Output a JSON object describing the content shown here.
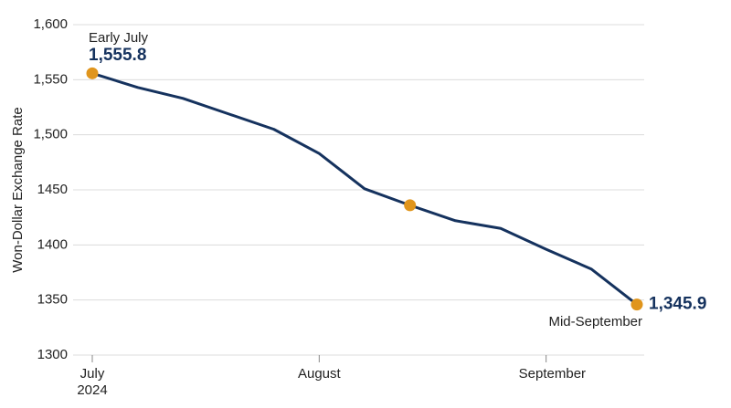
{
  "chart_data": {
    "type": "line",
    "y_label": "Won-Dollar Exchange Rate",
    "categories": [
      "July 2024",
      null,
      null,
      null,
      null,
      "August",
      null,
      null,
      null,
      null,
      "September",
      null,
      null
    ],
    "series": [
      {
        "name": "Won-Dollar Exchange Rate",
        "color": "#15325e",
        "values": [
          1555.8,
          1543,
          1533,
          1519,
          1505,
          1483,
          1451,
          1436,
          1422,
          1415,
          1396,
          1378,
          1345.9
        ],
        "value_labels": [
          "1,555.8",
          null,
          null,
          null,
          null,
          null,
          null,
          null,
          null,
          null,
          null,
          null,
          "1,345.9"
        ]
      }
    ],
    "annotations": [
      "Early July",
      "Mid-September"
    ],
    "marker_indices": [
      0,
      7,
      12
    ],
    "marker_color": "#e0951c",
    "ylim": [
      1300,
      1600
    ],
    "yticks": [
      1300,
      1350,
      1400,
      1450,
      {
        "value": 1500,
        "label": "1,500"
      },
      {
        "value": 1550,
        "label": "1,550"
      },
      {
        "value": 1600,
        "label": "1,600"
      }
    ],
    "grid": true
  }
}
